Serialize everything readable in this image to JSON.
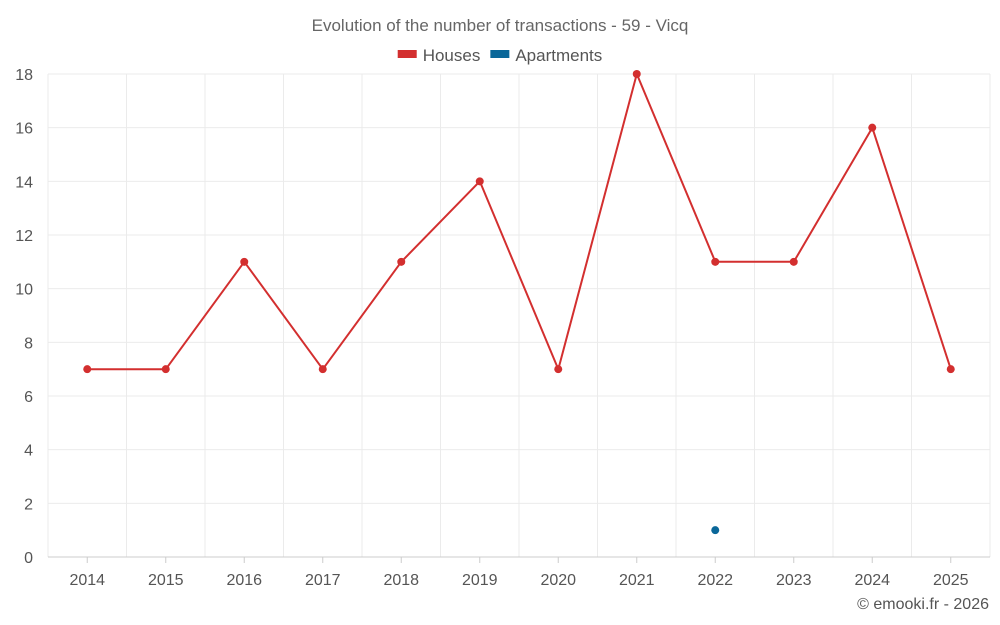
{
  "chart_data": {
    "type": "line",
    "title": "Evolution of the number of transactions - 59 - Vicq",
    "categories": [
      "2014",
      "2015",
      "2016",
      "2017",
      "2018",
      "2019",
      "2020",
      "2021",
      "2022",
      "2023",
      "2024",
      "2025"
    ],
    "ylim": [
      0,
      18
    ],
    "yticks": [
      0,
      2,
      4,
      6,
      8,
      10,
      12,
      14,
      16,
      18
    ],
    "grid": true,
    "legend_position": "top-center",
    "series": [
      {
        "name": "Houses",
        "color": "#d32f2f",
        "values": [
          7,
          7,
          11,
          7,
          11,
          14,
          7,
          18,
          11,
          11,
          16,
          7
        ]
      },
      {
        "name": "Apartments",
        "color": "#0a6799",
        "values": [
          null,
          null,
          null,
          null,
          null,
          null,
          null,
          null,
          1,
          null,
          null,
          null
        ]
      }
    ]
  },
  "credit": "© emooki.fr - 2026"
}
